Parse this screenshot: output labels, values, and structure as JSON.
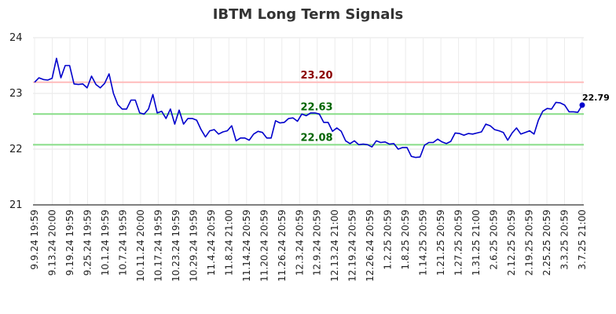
{
  "chart_data": {
    "type": "line",
    "title": "IBTM Long Term Signals",
    "xlabel": "",
    "ylabel": "",
    "ylim": [
      21,
      24
    ],
    "yticks": [
      "21",
      "22",
      "23",
      "24"
    ],
    "x_tick_labels": [
      "9.9.24 19:59",
      "9.13.24 20:00",
      "9.19.24 19:59",
      "9.25.24 19:59",
      "10.1.24 19:59",
      "10.7.24 19:59",
      "10.11.24 20:00",
      "10.17.24 19:59",
      "10.23.24 19:59",
      "10.29.24 19:59",
      "11.4.24 20:59",
      "11.8.24 21:00",
      "11.14.24 20:59",
      "11.20.24 20:59",
      "11.26.24 20:59",
      "12.3.24 20:59",
      "12.9.24 20:59",
      "12.13.24 21:00",
      "12.19.24 20:59",
      "12.26.24 20:59",
      "1.2.25 20:59",
      "1.8.25 20:59",
      "1.14.25 20:59",
      "1.21.25 20:59",
      "1.27.25 20:59",
      "1.31.25 21:00",
      "2.6.25 20:59",
      "2.12.25 20:59",
      "2.19.25 20:59",
      "2.25.25 20:59",
      "3.3.25 20:59",
      "3.7.25 21:00"
    ],
    "grid": true,
    "series": [
      {
        "color": "#0000cc",
        "values": [
          23.2,
          23.28,
          23.25,
          23.24,
          23.27,
          23.63,
          23.28,
          23.5,
          23.5,
          23.17,
          23.16,
          23.17,
          23.1,
          23.31,
          23.16,
          23.1,
          23.18,
          23.35,
          23.0,
          22.8,
          22.72,
          22.72,
          22.88,
          22.88,
          22.65,
          22.63,
          22.72,
          22.98,
          22.65,
          22.68,
          22.55,
          22.72,
          22.45,
          22.7,
          22.45,
          22.55,
          22.55,
          22.52,
          22.35,
          22.22,
          22.33,
          22.35,
          22.27,
          22.31,
          22.33,
          22.42,
          22.15,
          22.2,
          22.2,
          22.16,
          22.27,
          22.32,
          22.3,
          22.2,
          22.2,
          22.51,
          22.47,
          22.48,
          22.55,
          22.56,
          22.5,
          22.63,
          22.6,
          22.65,
          22.65,
          22.63,
          22.48,
          22.48,
          22.32,
          22.38,
          22.32,
          22.15,
          22.1,
          22.15,
          22.08,
          22.09,
          22.08,
          22.04,
          22.15,
          22.12,
          22.13,
          22.09,
          22.1,
          22.0,
          22.03,
          22.03,
          21.87,
          21.85,
          21.86,
          22.07,
          22.12,
          22.12,
          22.18,
          22.13,
          22.1,
          22.14,
          22.29,
          22.28,
          22.25,
          22.28,
          22.27,
          22.29,
          22.31,
          22.45,
          22.42,
          22.35,
          22.33,
          22.3,
          22.16,
          22.29,
          22.38,
          22.27,
          22.3,
          22.33,
          22.27,
          22.52,
          22.68,
          22.73,
          22.72,
          22.84,
          22.83,
          22.79,
          22.67,
          22.67,
          22.66,
          22.79
        ]
      }
    ],
    "reference_lines": [
      {
        "value": 23.2,
        "label": "23.20",
        "line_color": "#ffbbbb",
        "label_color": "#8b0000"
      },
      {
        "value": 22.63,
        "label": "22.63",
        "line_color": "#88dd88",
        "label_color": "#006400"
      },
      {
        "value": 22.08,
        "label": "22.08",
        "line_color": "#88dd88",
        "label_color": "#006400"
      }
    ],
    "last_point": {
      "value": 22.79,
      "label": "22.79"
    }
  }
}
